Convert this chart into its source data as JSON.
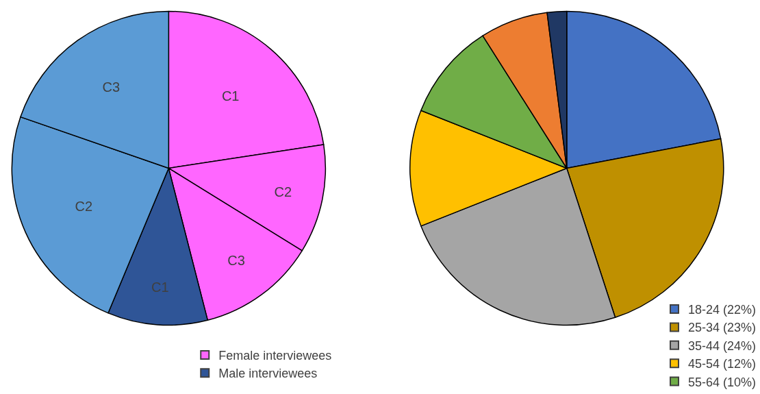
{
  "chart_data": [
    {
      "type": "pie",
      "categories": [
        "C1",
        "C2",
        "C3",
        "C1",
        "C2",
        "C3"
      ],
      "values": [
        22.6,
        11.2,
        12.2,
        10.3,
        24.0,
        19.7
      ],
      "colors": [
        "#ff66ff",
        "#ff66ff",
        "#ff66ff",
        "#2f5597",
        "#5b9bd5",
        "#5b9bd5"
      ],
      "annotations": [
        "Female interviewees",
        "Male interviewees"
      ]
    },
    {
      "type": "pie",
      "categories": [
        "18-24 (22%)",
        "25-34 (23%)",
        "35-44 (24%)",
        "45-54 (12%)",
        "55-64 (10%)",
        null,
        null
      ],
      "values": [
        22,
        23,
        24,
        12,
        10,
        7,
        2
      ],
      "colors": [
        "#4472c4",
        "#bf9000",
        "#a5a5a5",
        "#ffc000",
        "#70ad47",
        "#ed7d31",
        "#203864"
      ],
      "legend": "bottom right"
    }
  ]
}
